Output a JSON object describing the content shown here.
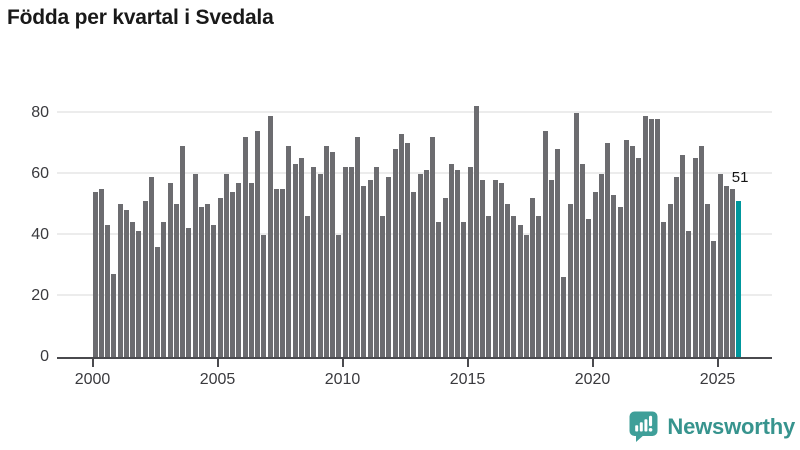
{
  "title": "Födda per kvartal i Svedala",
  "branding": {
    "logo_text": "Newsworthy",
    "logo_icon": "bar-chart-speech-bubble-icon"
  },
  "chart_data": {
    "type": "bar",
    "title": "Födda per kvartal i Svedala",
    "xlabel": "",
    "ylabel": "",
    "x_unit": "quarter",
    "start_period": "2000-Q1",
    "end_period": "2025-Q4",
    "values": [
      54,
      55,
      43,
      27,
      50,
      48,
      44,
      41,
      51,
      59,
      36,
      44,
      57,
      50,
      69,
      42,
      60,
      49,
      50,
      43,
      52,
      60,
      54,
      57,
      72,
      57,
      74,
      40,
      79,
      55,
      55,
      69,
      63,
      65,
      46,
      62,
      60,
      69,
      67,
      40,
      62,
      62,
      72,
      56,
      58,
      62,
      46,
      59,
      68,
      73,
      70,
      54,
      60,
      61,
      72,
      44,
      52,
      63,
      61,
      44,
      62,
      82,
      58,
      46,
      58,
      57,
      50,
      46,
      43,
      40,
      52,
      46,
      74,
      58,
      68,
      26,
      50,
      80,
      63,
      45,
      54,
      60,
      70,
      53,
      49,
      71,
      69,
      65,
      79,
      78,
      78,
      44,
      50,
      59,
      66,
      41,
      65,
      69,
      50,
      38,
      60,
      56,
      55,
      51
    ],
    "highlight_index": 103,
    "highlight_value_label": "51",
    "x_tick_labels": [
      "2000",
      "2005",
      "2010",
      "2015",
      "2020",
      "2025"
    ],
    "x_tick_positions": [
      0,
      20,
      40,
      60,
      80,
      100
    ],
    "y_ticks": [
      0,
      20,
      40,
      60,
      80
    ],
    "ylim": [
      0,
      84
    ],
    "grid": true,
    "legend": null,
    "colors": {
      "bar": "#6c6c70",
      "highlight": "#00979d",
      "grid": "#ececec",
      "axis": "#4a4a4e",
      "brand": "#37948e"
    }
  }
}
